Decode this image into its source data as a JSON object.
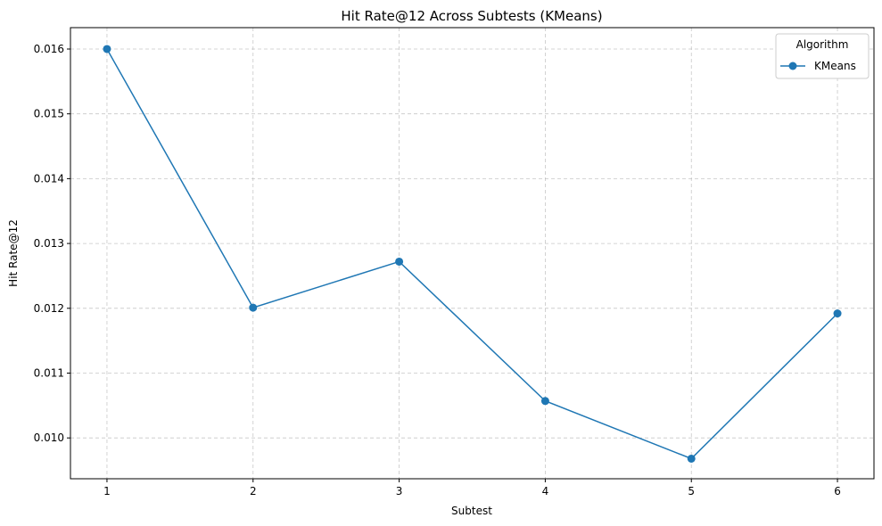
{
  "chart_data": {
    "type": "line",
    "title": "Hit Rate@12 Across Subtests (KMeans)",
    "xlabel": "Subtest",
    "ylabel": "Hit Rate@12",
    "x": [
      1,
      2,
      3,
      4,
      5,
      6
    ],
    "xticks": [
      "1",
      "2",
      "3",
      "4",
      "5",
      "6"
    ],
    "xlim": [
      0.75,
      6.25
    ],
    "ylim": [
      0.00937,
      0.01633
    ],
    "yticks": [
      0.01,
      0.011,
      0.012,
      0.013,
      0.014,
      0.015,
      0.016
    ],
    "ytick_labels": [
      "0.010",
      "0.011",
      "0.012",
      "0.013",
      "0.014",
      "0.015",
      "0.016"
    ],
    "grid": true,
    "grid_style": "dashed",
    "legend": {
      "title": "Algorithm",
      "placement": "top-right"
    },
    "series": [
      {
        "name": "KMeans",
        "color": "#1f77b4",
        "marker": "circle",
        "values": [
          0.016,
          0.01201,
          0.01272,
          0.01057,
          0.00968,
          0.01192
        ]
      }
    ]
  }
}
